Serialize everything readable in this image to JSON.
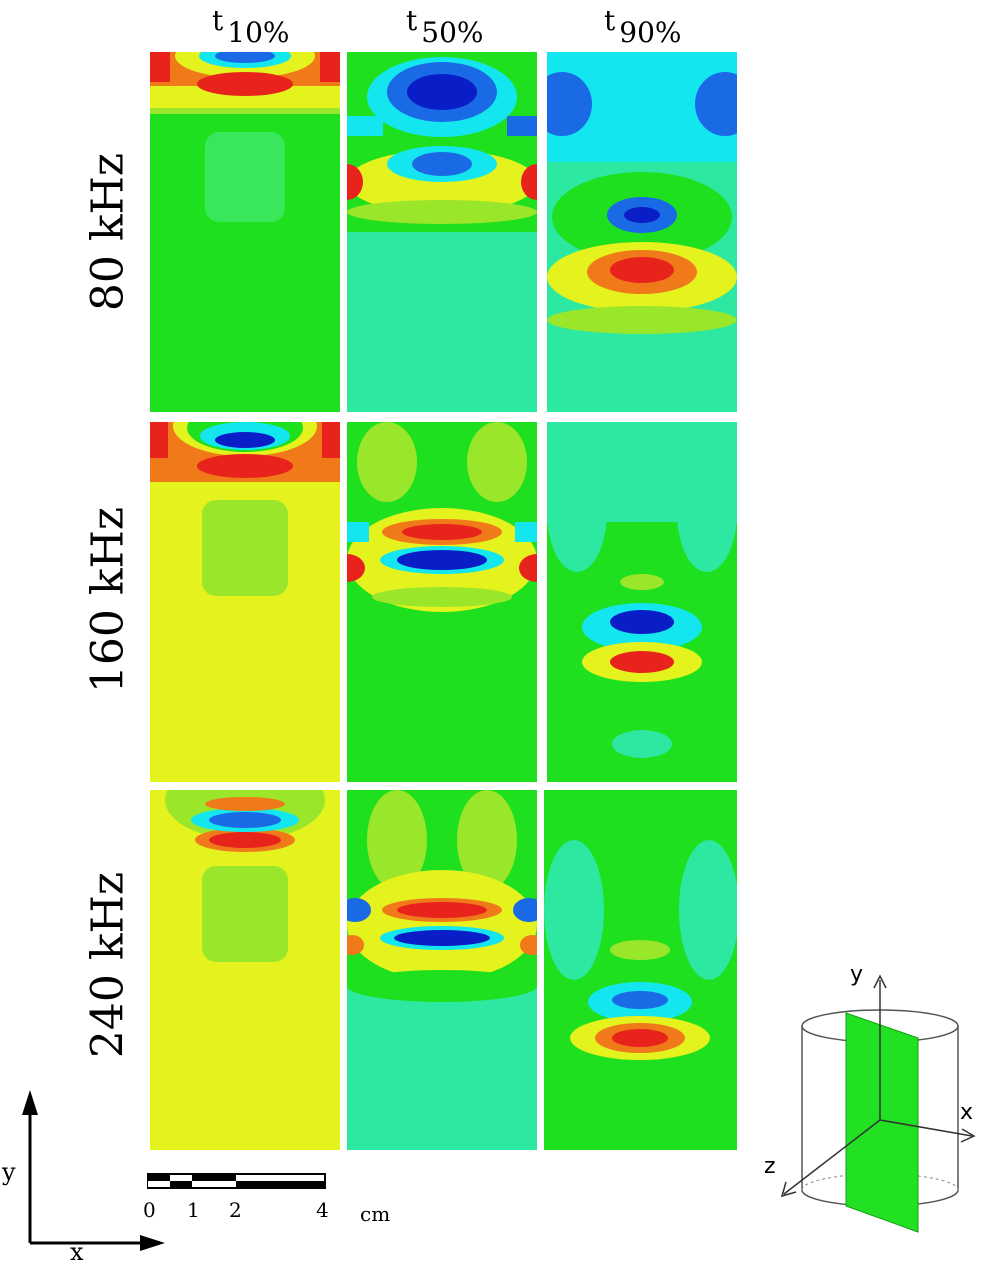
{
  "columns": [
    {
      "t": "t",
      "pct": "10%"
    },
    {
      "t": "t",
      "pct": "50%"
    },
    {
      "t": "t",
      "pct": "90%"
    }
  ],
  "rows": [
    "80 kHz",
    "160 kHz",
    "240 kHz"
  ],
  "scale": {
    "ticks": [
      "0",
      "1",
      "2",
      "4"
    ],
    "unit": "cm"
  },
  "axes2d": {
    "y": "y",
    "x": "x"
  },
  "axes3d": {
    "y": "y",
    "x": "x",
    "z": "z"
  },
  "colors": {
    "red": "#e8231c",
    "orange": "#f07a1a",
    "yellow": "#e4f21e",
    "lime": "#9ae62a",
    "green": "#1ee01e",
    "aqua": "#2ce8a0",
    "cyan": "#14e6f0",
    "blue": "#1a6ae6",
    "navy": "#0a1ec8"
  }
}
